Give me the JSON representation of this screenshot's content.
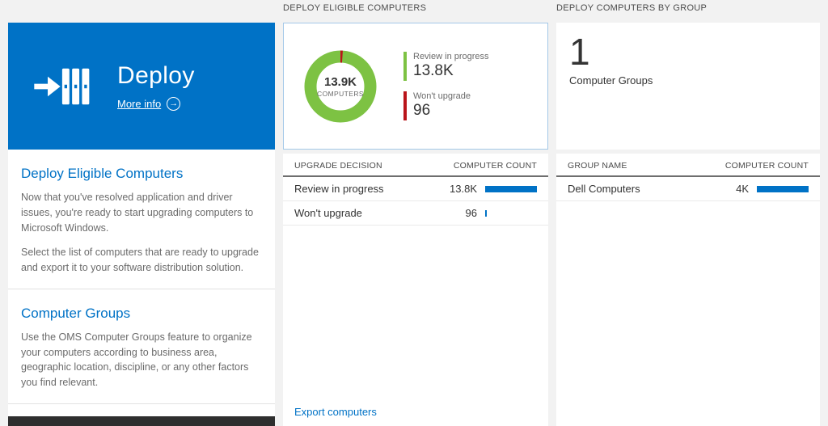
{
  "colors": {
    "accent_blue": "#0072c6",
    "donut_green": "#7dc243",
    "alert_red": "#ba141a",
    "bar_blue": "#0072c6",
    "page_background": "#f2f2f2",
    "footer_bar": "#2e2e2e"
  },
  "left_panel": {
    "tile": {
      "title": "Deploy",
      "more_info_label": "More info"
    },
    "sections": [
      {
        "heading": "Deploy Eligible Computers",
        "paragraphs": [
          "Now that you've resolved application and driver issues, you're ready to start upgrading computers to Microsoft Windows.",
          "Select the list of computers that are ready to upgrade and export it to your software distribution solution."
        ]
      },
      {
        "heading": "Computer Groups",
        "paragraphs": [
          "Use the OMS Computer Groups feature to organize your computers according to business area, geographic location, discipline, or any other factors you find relevant."
        ]
      }
    ]
  },
  "eligible_panel": {
    "header": "DEPLOY ELIGIBLE COMPUTERS",
    "donut_center": {
      "value": "13.9K",
      "label": "COMPUTERS"
    },
    "table": {
      "columns": [
        "UPGRADE DECISION",
        "COMPUTER COUNT"
      ],
      "rows": [
        {
          "label": "Review in progress",
          "value": "13.8K",
          "bar_pct": 100
        },
        {
          "label": "Won't upgrade",
          "value": "96",
          "bar_pct": 3
        }
      ]
    },
    "export_link": "Export computers"
  },
  "groups_panel": {
    "header": "DEPLOY COMPUTERS BY GROUP",
    "count": "1",
    "count_label": "Computer Groups",
    "table": {
      "columns": [
        "GROUP NAME",
        "COMPUTER COUNT"
      ],
      "rows": [
        {
          "label": "Dell Computers",
          "value": "4K",
          "bar_pct": 100
        }
      ]
    }
  },
  "chart_data": {
    "type": "pie",
    "title": "Deploy eligible computers",
    "center_value": "13.9K",
    "center_label": "COMPUTERS",
    "legend_position": "right",
    "segments": [
      {
        "label": "Review in progress",
        "value": 13800,
        "display": "13.8K",
        "color": "#7dc243"
      },
      {
        "label": "Won't upgrade",
        "value": 96,
        "display": "96",
        "color": "#ba141a"
      }
    ]
  }
}
